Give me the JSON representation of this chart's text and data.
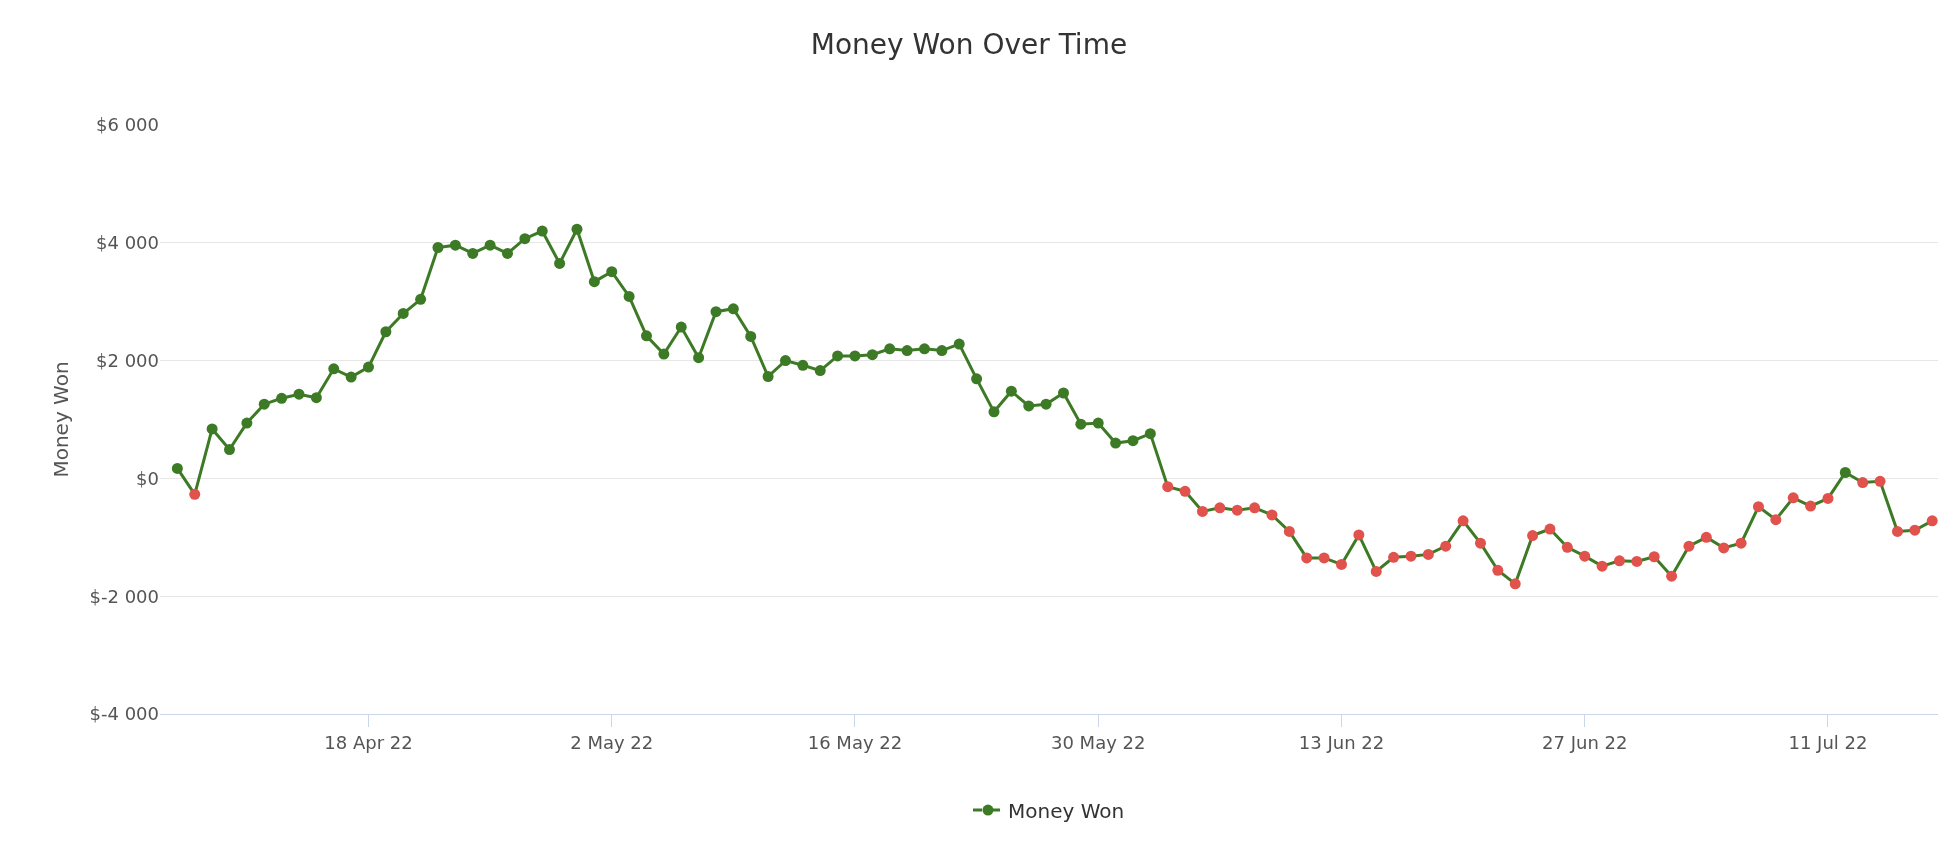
{
  "chart_data": {
    "type": "line",
    "title": "Money Won Over Time",
    "ylabel": "Money Won",
    "x": [
      "2022-04-07",
      "2022-04-08",
      "2022-04-09",
      "2022-04-10",
      "2022-04-11",
      "2022-04-12",
      "2022-04-13",
      "2022-04-14",
      "2022-04-15",
      "2022-04-16",
      "2022-04-17",
      "2022-04-18",
      "2022-04-19",
      "2022-04-20",
      "2022-04-21",
      "2022-04-22",
      "2022-04-23",
      "2022-04-24",
      "2022-04-25",
      "2022-04-26",
      "2022-04-27",
      "2022-04-28",
      "2022-04-29",
      "2022-04-30",
      "2022-05-01",
      "2022-05-02",
      "2022-05-03",
      "2022-05-04",
      "2022-05-05",
      "2022-05-06",
      "2022-05-07",
      "2022-05-08",
      "2022-05-09",
      "2022-05-10",
      "2022-05-11",
      "2022-05-12",
      "2022-05-13",
      "2022-05-14",
      "2022-05-15",
      "2022-05-16",
      "2022-05-17",
      "2022-05-18",
      "2022-05-19",
      "2022-05-20",
      "2022-05-21",
      "2022-05-22",
      "2022-05-23",
      "2022-05-24",
      "2022-05-25",
      "2022-05-26",
      "2022-05-27",
      "2022-05-28",
      "2022-05-29",
      "2022-05-30",
      "2022-05-31",
      "2022-06-01",
      "2022-06-02",
      "2022-06-03",
      "2022-06-04",
      "2022-06-05",
      "2022-06-06",
      "2022-06-07",
      "2022-06-08",
      "2022-06-09",
      "2022-06-10",
      "2022-06-11",
      "2022-06-12",
      "2022-06-13",
      "2022-06-14",
      "2022-06-15",
      "2022-06-16",
      "2022-06-17",
      "2022-06-18",
      "2022-06-19",
      "2022-06-20",
      "2022-06-21",
      "2022-06-22",
      "2022-06-23",
      "2022-06-24",
      "2022-06-25",
      "2022-06-26",
      "2022-06-27",
      "2022-06-28",
      "2022-06-29",
      "2022-06-30",
      "2022-07-01",
      "2022-07-02",
      "2022-07-03",
      "2022-07-04",
      "2022-07-05",
      "2022-07-06",
      "2022-07-07",
      "2022-07-08",
      "2022-07-09",
      "2022-07-10",
      "2022-07-11",
      "2022-07-12",
      "2022-07-13",
      "2022-07-14",
      "2022-07-15",
      "2022-07-16",
      "2022-07-17"
    ],
    "series": [
      {
        "name": "Money Won",
        "color": "#3d7a25",
        "values": [
          170,
          -270,
          840,
          490,
          940,
          1260,
          1360,
          1430,
          1370,
          1860,
          1720,
          1890,
          2490,
          2800,
          3040,
          3920,
          3960,
          3820,
          3960,
          3820,
          4070,
          4200,
          3650,
          4230,
          3340,
          3510,
          3090,
          2420,
          2110,
          2570,
          2050,
          2830,
          2880,
          2410,
          1730,
          2000,
          1920,
          1830,
          2080,
          2080,
          2100,
          2200,
          2170,
          2200,
          2170,
          2280,
          1690,
          1130,
          1480,
          1230,
          1260,
          1450,
          920,
          940,
          600,
          640,
          760,
          -140,
          -220,
          -560,
          -500,
          -540,
          -500,
          -620,
          -900,
          -1350,
          -1350,
          -1460,
          -960,
          -1580,
          -1340,
          -1320,
          -1290,
          -1150,
          -720,
          -1100,
          -1560,
          -1790,
          -970,
          -860,
          -1170,
          -1320,
          -1490,
          -1400,
          -1410,
          -1330,
          -1660,
          -1150,
          -1000,
          -1180,
          -1100,
          -480,
          -700,
          -330,
          -470,
          -340,
          100,
          -70,
          -50,
          -900,
          -880,
          -720
        ],
        "colors": [
          "#3d7a25",
          "#e0524b",
          "#3d7a25",
          "#3d7a25",
          "#3d7a25",
          "#3d7a25",
          "#3d7a25",
          "#3d7a25",
          "#3d7a25",
          "#3d7a25",
          "#3d7a25",
          "#3d7a25",
          "#3d7a25",
          "#3d7a25",
          "#3d7a25",
          "#3d7a25",
          "#3d7a25",
          "#3d7a25",
          "#3d7a25",
          "#3d7a25",
          "#3d7a25",
          "#3d7a25",
          "#3d7a25",
          "#3d7a25",
          "#3d7a25",
          "#3d7a25",
          "#3d7a25",
          "#3d7a25",
          "#3d7a25",
          "#3d7a25",
          "#3d7a25",
          "#3d7a25",
          "#3d7a25",
          "#3d7a25",
          "#3d7a25",
          "#3d7a25",
          "#3d7a25",
          "#3d7a25",
          "#3d7a25",
          "#3d7a25",
          "#3d7a25",
          "#3d7a25",
          "#3d7a25",
          "#3d7a25",
          "#3d7a25",
          "#3d7a25",
          "#3d7a25",
          "#3d7a25",
          "#3d7a25",
          "#3d7a25",
          "#3d7a25",
          "#3d7a25",
          "#3d7a25",
          "#3d7a25",
          "#3d7a25",
          "#3d7a25",
          "#3d7a25",
          "#e0524b",
          "#e0524b",
          "#e0524b",
          "#e0524b",
          "#e0524b",
          "#e0524b",
          "#e0524b",
          "#e0524b",
          "#e0524b",
          "#e0524b",
          "#e0524b",
          "#e0524b",
          "#e0524b",
          "#e0524b",
          "#e0524b",
          "#e0524b",
          "#e0524b",
          "#e0524b",
          "#e0524b",
          "#e0524b",
          "#e0524b",
          "#e0524b",
          "#e0524b",
          "#e0524b",
          "#e0524b",
          "#e0524b",
          "#e0524b",
          "#e0524b",
          "#e0524b",
          "#e0524b",
          "#e0524b",
          "#e0524b",
          "#e0524b",
          "#e0524b",
          "#e0524b",
          "#e0524b",
          "#e0524b",
          "#e0524b",
          "#e0524b",
          "#3d7a25",
          "#e0524b",
          "#e0524b",
          "#e0524b",
          "#e0524b",
          "#e0524b"
        ]
      }
    ],
    "xlim": [
      "2022-04-06",
      "2022-07-17T08:00"
    ],
    "xticks": [
      {
        "value": "2022-04-18",
        "label": "18 Apr 22"
      },
      {
        "value": "2022-05-02",
        "label": "2 May 22"
      },
      {
        "value": "2022-05-16",
        "label": "16 May 22"
      },
      {
        "value": "2022-05-30",
        "label": "30 May 22"
      },
      {
        "value": "2022-06-13",
        "label": "13 Jun 22"
      },
      {
        "value": "2022-06-27",
        "label": "27 Jun 22"
      },
      {
        "value": "2022-07-11",
        "label": "11 Jul 22"
      }
    ],
    "ylim": [
      -4000,
      6000
    ],
    "yticks": [
      {
        "value": -4000,
        "label": "$-4 000"
      },
      {
        "value": -2000,
        "label": "$-2 000"
      },
      {
        "value": 0,
        "label": "$0"
      },
      {
        "value": 2000,
        "label": "$2 000"
      },
      {
        "value": 4000,
        "label": "$4 000"
      },
      {
        "value": 6000,
        "label": "$6 000"
      }
    ],
    "grid": "y",
    "legend": "bottom",
    "marker": "circle",
    "line_style": "solid"
  }
}
